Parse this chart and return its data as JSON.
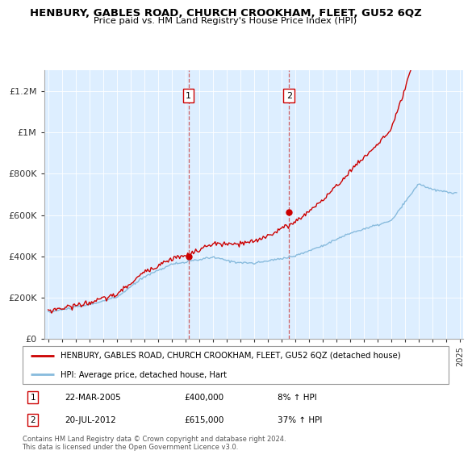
{
  "title": "HENBURY, GABLES ROAD, CHURCH CROOKHAM, FLEET, GU52 6QZ",
  "subtitle": "Price paid vs. HM Land Registry's House Price Index (HPI)",
  "red_label": "HENBURY, GABLES ROAD, CHURCH CROOKHAM, FLEET, GU52 6QZ (detached house)",
  "blue_label": "HPI: Average price, detached house, Hart",
  "annotation1_date": "22-MAR-2005",
  "annotation1_price": "£400,000",
  "annotation1_hpi": "8% ↑ HPI",
  "annotation1_year": 2005.22,
  "annotation1_value": 400000,
  "annotation2_date": "20-JUL-2012",
  "annotation2_price": "£615,000",
  "annotation2_hpi": "37% ↑ HPI",
  "annotation2_year": 2012.55,
  "annotation2_value": 615000,
  "red_color": "#cc0000",
  "blue_color": "#88bbdd",
  "background_plot": "#ddeeff",
  "ylim": [
    0,
    1300000
  ],
  "yticks": [
    0,
    200000,
    400000,
    600000,
    800000,
    1000000,
    1200000
  ],
  "ytick_labels": [
    "£0",
    "£200K",
    "£400K",
    "£600K",
    "£800K",
    "£1M",
    "£1.2M"
  ],
  "footer": "Contains HM Land Registry data © Crown copyright and database right 2024.\nThis data is licensed under the Open Government Licence v3.0.",
  "vline1_year": 2005.22,
  "vline2_year": 2012.55,
  "xmin": 1994.7,
  "xmax": 2025.2
}
